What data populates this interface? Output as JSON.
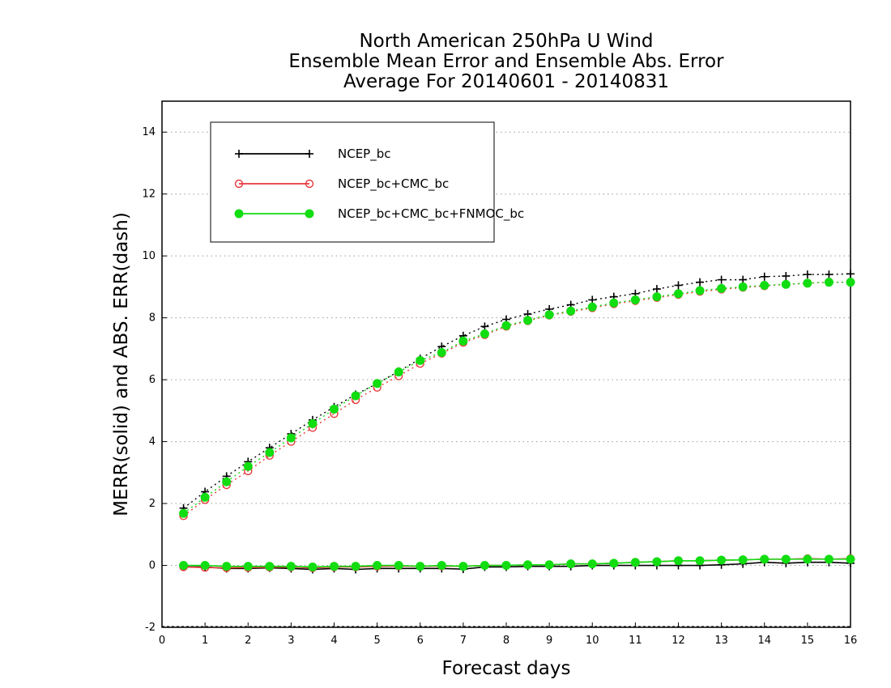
{
  "chart_data": {
    "type": "line",
    "title": [
      "North American 250hPa U Wind",
      "Ensemble Mean Error and Ensemble Abs. Error",
      "Average For 20140601 - 20140831"
    ],
    "xlabel": "Forecast days",
    "ylabel": "MERR(solid) and ABS. ERR(dash)",
    "xlim": [
      0,
      16
    ],
    "ylim": [
      -2,
      15
    ],
    "xticks": [
      0,
      1,
      2,
      3,
      4,
      5,
      6,
      7,
      8,
      9,
      10,
      11,
      12,
      13,
      14,
      15,
      16
    ],
    "yticks": [
      -2,
      0,
      2,
      4,
      6,
      8,
      10,
      12,
      14
    ],
    "grid": "horizontal dotted",
    "legend_position": "top-left",
    "x": [
      0.5,
      1,
      1.5,
      2,
      2.5,
      3,
      3.5,
      4,
      4.5,
      5,
      5.5,
      6,
      6.5,
      7,
      7.5,
      8,
      8.5,
      9,
      9.5,
      10,
      10.5,
      11,
      11.5,
      12,
      12.5,
      13,
      13.5,
      14,
      14.5,
      15,
      15.5,
      16
    ],
    "series": [
      {
        "name": "NCEP_bc",
        "color": "#000000",
        "marker": "plus",
        "abs_err": [
          1.85,
          2.38,
          2.88,
          3.35,
          3.8,
          4.25,
          4.7,
          5.12,
          5.52,
          5.88,
          6.27,
          6.68,
          7.07,
          7.42,
          7.72,
          7.95,
          8.12,
          8.28,
          8.42,
          8.58,
          8.68,
          8.78,
          8.93,
          9.05,
          9.15,
          9.23,
          9.23,
          9.33,
          9.35,
          9.4,
          9.4,
          9.42
        ],
        "mean_err": [
          -0.05,
          -0.05,
          -0.1,
          -0.1,
          -0.08,
          -0.1,
          -0.13,
          -0.1,
          -0.13,
          -0.1,
          -0.1,
          -0.1,
          -0.1,
          -0.12,
          -0.05,
          -0.05,
          -0.03,
          -0.03,
          -0.03,
          0.0,
          0.0,
          0.0,
          0.0,
          0.0,
          0.0,
          0.02,
          0.05,
          0.1,
          0.07,
          0.1,
          0.1,
          0.07
        ]
      },
      {
        "name": "NCEP_bc+CMC_bc",
        "color": "#e8383b",
        "marker": "open-circle",
        "abs_err": [
          1.6,
          2.12,
          2.6,
          3.05,
          3.55,
          4.0,
          4.45,
          4.9,
          5.35,
          5.75,
          6.12,
          6.52,
          6.85,
          7.2,
          7.45,
          7.72,
          7.9,
          8.08,
          8.2,
          8.32,
          8.45,
          8.55,
          8.65,
          8.75,
          8.85,
          8.92,
          8.98,
          9.03,
          9.08,
          9.12,
          9.15,
          9.15
        ],
        "mean_err": [
          -0.05,
          -0.07,
          -0.08,
          -0.07,
          -0.06,
          -0.05,
          -0.08,
          -0.05,
          -0.05,
          -0.03,
          -0.02,
          -0.03,
          -0.02,
          -0.03,
          0.0,
          0.0,
          0.02,
          0.02,
          0.05,
          0.05,
          0.07,
          0.1,
          0.12,
          0.15,
          0.15,
          0.17,
          0.18,
          0.2,
          0.2,
          0.22,
          0.2,
          0.22
        ]
      },
      {
        "name": "NCEP_bc+CMC_bc+FNMOC_bc",
        "color": "#11dd11",
        "marker": "filled-circle",
        "abs_err": [
          1.68,
          2.2,
          2.7,
          3.2,
          3.65,
          4.12,
          4.58,
          5.05,
          5.48,
          5.88,
          6.25,
          6.62,
          6.88,
          7.25,
          7.48,
          7.75,
          7.92,
          8.1,
          8.22,
          8.35,
          8.48,
          8.58,
          8.68,
          8.78,
          8.88,
          8.95,
          9.0,
          9.05,
          9.08,
          9.12,
          9.15,
          9.15
        ],
        "mean_err": [
          0.0,
          0.0,
          -0.03,
          -0.03,
          -0.03,
          -0.03,
          -0.05,
          -0.03,
          -0.03,
          0.0,
          0.0,
          -0.03,
          0.0,
          -0.03,
          0.0,
          0.0,
          0.02,
          0.02,
          0.05,
          0.05,
          0.07,
          0.1,
          0.12,
          0.15,
          0.15,
          0.17,
          0.18,
          0.2,
          0.2,
          0.2,
          0.2,
          0.2
        ]
      }
    ]
  }
}
